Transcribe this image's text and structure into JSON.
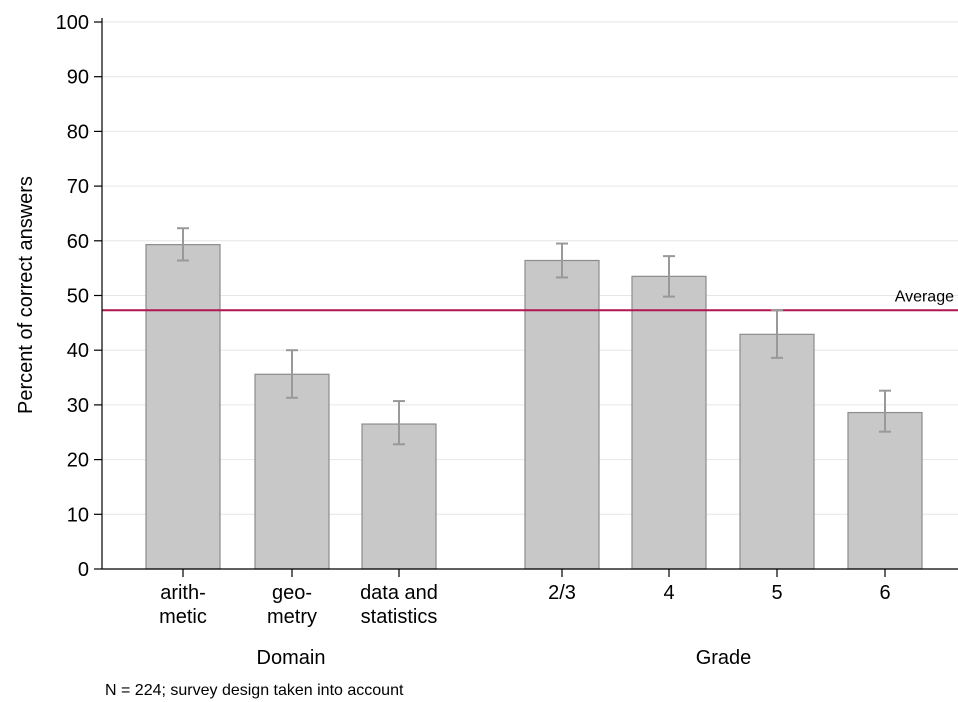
{
  "chart_data": {
    "type": "bar",
    "ylabel": "Percent of correct answers",
    "ylim": [
      0,
      100
    ],
    "yticks": [
      0,
      10,
      20,
      30,
      40,
      50,
      60,
      70,
      80,
      90,
      100
    ],
    "grid": true,
    "groups": [
      {
        "label": "Domain",
        "categories": [
          {
            "label": [
              "arith-",
              "metic"
            ],
            "value": 59.3,
            "ci": [
              56.4,
              62.3
            ]
          },
          {
            "label": [
              "geo-",
              "metry"
            ],
            "value": 35.6,
            "ci": [
              31.3,
              40.0
            ]
          },
          {
            "label": [
              "data and",
              "statistics"
            ],
            "value": 26.5,
            "ci": [
              22.8,
              30.7
            ]
          }
        ]
      },
      {
        "label": "Grade",
        "categories": [
          {
            "label": [
              "2/3"
            ],
            "value": 56.4,
            "ci": [
              53.3,
              59.5
            ]
          },
          {
            "label": [
              "4"
            ],
            "value": 53.5,
            "ci": [
              49.8,
              57.2
            ]
          },
          {
            "label": [
              "5"
            ],
            "value": 42.9,
            "ci": [
              38.6,
              47.3
            ]
          },
          {
            "label": [
              "6"
            ],
            "value": 28.6,
            "ci": [
              25.1,
              32.6
            ]
          }
        ]
      }
    ],
    "reference_line": {
      "label": "Average",
      "value": 47.3
    },
    "note": "N = 224; survey design taken into account",
    "colors": {
      "bar_fill": "#c8c8c8",
      "bar_stroke": "#8c8c8c",
      "error_bar": "#999999",
      "reference": "#b0164f",
      "grid": "#e6e6e6"
    }
  }
}
